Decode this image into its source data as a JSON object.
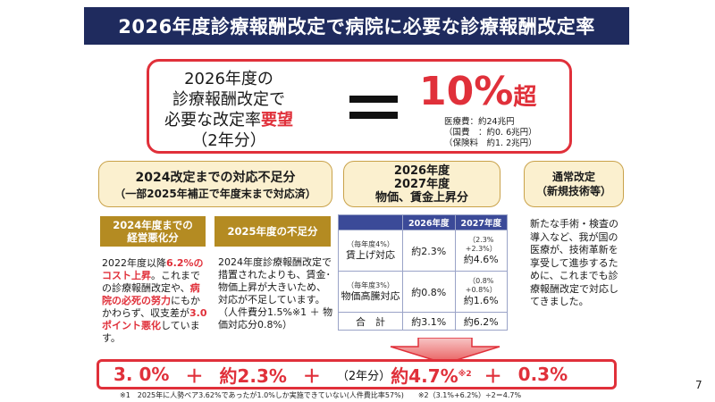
{
  "title": "2026年度診療報酬改定で病院に必要な診療報酬改定率",
  "top": {
    "line1": "2026年度の",
    "line2": "診療報酬改定で",
    "line3_pre": "必要な改定率",
    "line3_red": "要望",
    "line4": "（2年分）",
    "big_value": "10%",
    "big_suffix": "超",
    "cost_total": "医療費：約24兆円",
    "cost_national": "（国費　：約0. 6兆円）",
    "cost_premium": "（保険料　約1. 2兆円）"
  },
  "box_shortfall": {
    "line1": "2024改定までの対応不足分",
    "line2": "（一部2025年補正で年度末まで対応済）"
  },
  "box_price": {
    "line1": "2026年度",
    "line2": "2027年度",
    "line3": "物価、賃金上昇分"
  },
  "box_normal": {
    "line1": "通常改定",
    "line2": "（新規技術等）"
  },
  "gold1": {
    "line1": "2024年度までの",
    "line2": "経営悪化分"
  },
  "gold2": "2025年度の不足分",
  "para1": {
    "t1": "2022年度以降",
    "r1": "6.2%のコスト上昇",
    "t2": "。これまでの診療報酬改定や、",
    "r2": "病院の必死の努力",
    "t3": "にもかかわらず、収支差が",
    "r3": "3.0ポイント悪化",
    "t4": "しています。"
  },
  "para2": "2024年度診療報酬改定で措置されたよりも、賃金･物価上昇が大きいため、対応が不足しています。（人件費分1.5%※1 ＋ 物価対応分0.8%）",
  "para3": "新たな手術・検査の導入など、我が国の医療が、技術革新を享受して進歩するために、これまでも診療報酬改定で対応してきました。",
  "table": {
    "headers": [
      "",
      "2026年度",
      "2027年度"
    ],
    "rows": [
      {
        "small": "（毎年度4%）",
        "label": "賃上げ対応",
        "v2026": "約2.3%",
        "v2027_small1": "（2.3%",
        "v2027_small2": "+2.3%）",
        "v2027": "約4.6%"
      },
      {
        "small": "（毎年度3%）",
        "label": "物価高騰対応",
        "v2026": "約0.8%",
        "v2027_small1": "（0.8%",
        "v2027_small2": "+0.8%）",
        "v2027": "約1.6%"
      },
      {
        "small": "",
        "label": "合　計",
        "v2026": "約3.1%",
        "v2027_small1": "",
        "v2027_small2": "",
        "v2027": "約6.2%"
      }
    ]
  },
  "bottom": {
    "v1": "3. 0%",
    "plus": "＋",
    "v2": "約2.3%",
    "note": "（2年分）",
    "v3": "約4.7%",
    "v3_sup": "※2",
    "v4": "0.3%"
  },
  "footnote": "※1　2025年に人勢ベア3.62%であったが1.0%しか実施できていない(人件費比率57%)　　※2（3.1%+6.2%）÷2＝4.7%",
  "page_number": "7",
  "colors": {
    "navy": "#1f2b5e",
    "red": "#e0303a",
    "gold": "#b48b22",
    "beige": "#fbf0cf",
    "table_header": "#3b4a98"
  }
}
